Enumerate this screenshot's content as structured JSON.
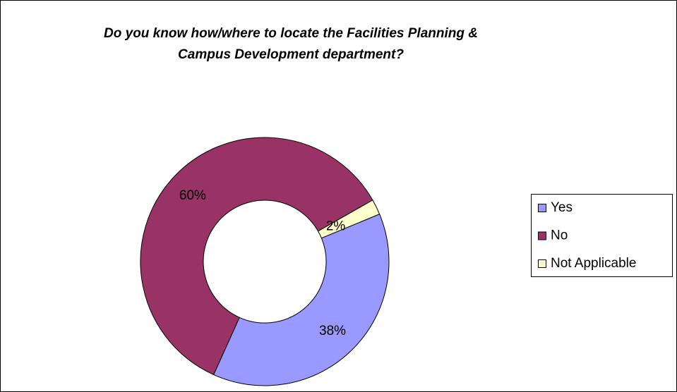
{
  "chart_data": {
    "type": "donut",
    "title": [
      "Do you know how/where to locate the Facilities Planning &",
      "Campus Development department?"
    ],
    "categories": [
      "Yes",
      "No",
      "Not Applicable"
    ],
    "values": [
      38,
      60,
      2
    ],
    "value_labels": [
      "38%",
      "60%",
      "2%"
    ],
    "colors": [
      "#9999ff",
      "#993366",
      "#ffffcc"
    ],
    "legend": "right"
  }
}
